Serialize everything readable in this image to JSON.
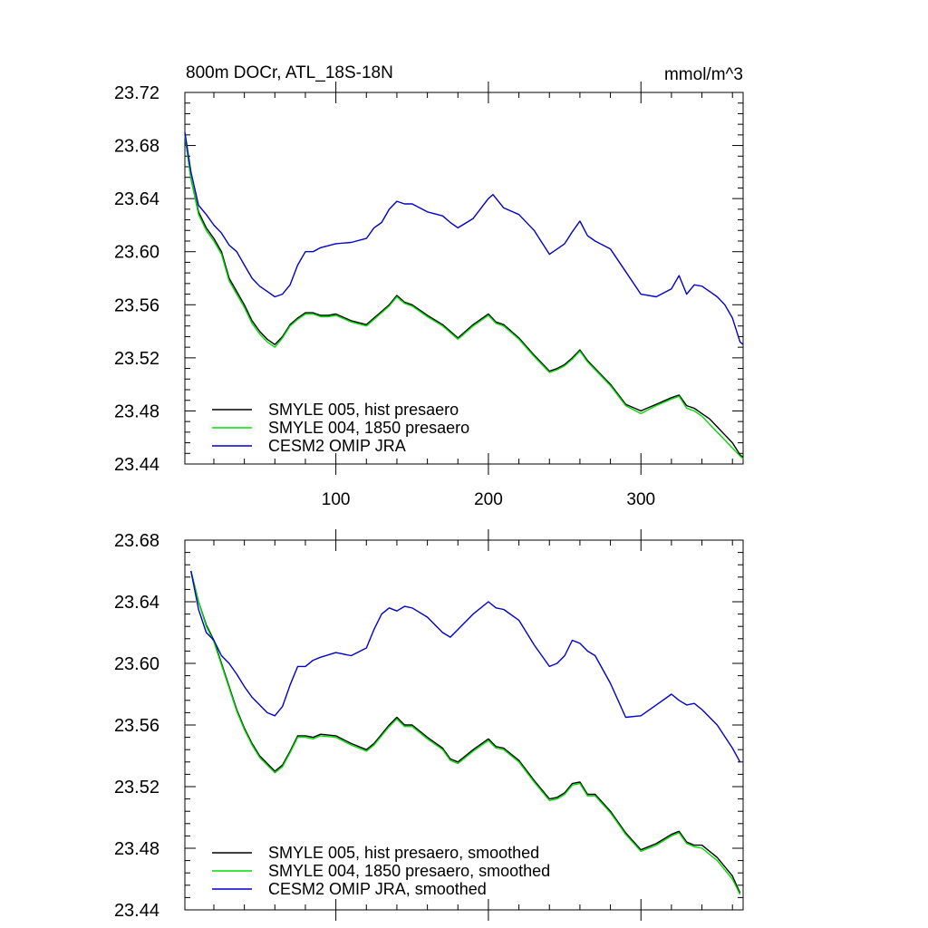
{
  "chart_data": [
    {
      "type": "line",
      "title": "800m DOCr, ATL_18S-18N",
      "units": "mmol/m^3",
      "xlim": [
        1,
        367
      ],
      "ylim": [
        23.44,
        23.72
      ],
      "yticks": [
        "23.44",
        "23.48",
        "23.52",
        "23.56",
        "23.60",
        "23.64",
        "23.68",
        "23.72"
      ],
      "xticks": [
        "100",
        "200",
        "300"
      ],
      "legend": [
        "SMYLE 005, hist presaero",
        "SMYLE 004, 1850 presaero",
        "CESM2 OMIP JRA"
      ],
      "series": [
        {
          "name": "SMYLE 005, hist presaero",
          "color": "#000000",
          "x": [
            1,
            5,
            10,
            15,
            20,
            25,
            30,
            35,
            40,
            45,
            50,
            55,
            60,
            65,
            70,
            75,
            80,
            85,
            90,
            95,
            100,
            110,
            120,
            125,
            130,
            135,
            140,
            145,
            150,
            160,
            170,
            180,
            190,
            200,
            205,
            210,
            220,
            230,
            240,
            245,
            250,
            255,
            260,
            265,
            270,
            280,
            290,
            300,
            310,
            320,
            325,
            330,
            335,
            340,
            345,
            350,
            355,
            360,
            365,
            367
          ],
          "y": [
            23.688,
            23.655,
            23.63,
            23.618,
            23.61,
            23.6,
            23.58,
            23.57,
            23.56,
            23.548,
            23.54,
            23.534,
            23.53,
            23.536,
            23.545,
            23.55,
            23.554,
            23.554,
            23.552,
            23.552,
            23.553,
            23.548,
            23.545,
            23.55,
            23.555,
            23.56,
            23.567,
            23.562,
            23.56,
            23.552,
            23.545,
            23.535,
            23.545,
            23.553,
            23.547,
            23.545,
            23.535,
            23.522,
            23.51,
            23.512,
            23.515,
            23.52,
            23.526,
            23.518,
            23.512,
            23.5,
            23.485,
            23.48,
            23.485,
            23.49,
            23.492,
            23.484,
            23.482,
            23.478,
            23.474,
            23.468,
            23.462,
            23.456,
            23.447,
            23.445
          ]
        },
        {
          "name": "SMYLE 004, 1850 presaero",
          "color": "#00dd00",
          "x": [
            1,
            5,
            10,
            15,
            20,
            25,
            30,
            35,
            40,
            45,
            50,
            55,
            60,
            65,
            70,
            75,
            80,
            85,
            90,
            95,
            100,
            110,
            120,
            125,
            130,
            135,
            140,
            145,
            150,
            160,
            170,
            180,
            190,
            200,
            205,
            210,
            220,
            230,
            240,
            245,
            250,
            255,
            260,
            265,
            270,
            280,
            290,
            300,
            310,
            320,
            325,
            330,
            335,
            340,
            345,
            350,
            355,
            360,
            365,
            367
          ],
          "y": [
            23.688,
            23.655,
            23.628,
            23.616,
            23.608,
            23.598,
            23.578,
            23.568,
            23.558,
            23.546,
            23.538,
            23.532,
            23.528,
            23.535,
            23.544,
            23.549,
            23.553,
            23.553,
            23.551,
            23.551,
            23.552,
            23.547,
            23.544,
            23.549,
            23.554,
            23.559,
            23.566,
            23.561,
            23.559,
            23.551,
            23.544,
            23.534,
            23.544,
            23.552,
            23.546,
            23.544,
            23.534,
            23.521,
            23.509,
            23.511,
            23.514,
            23.519,
            23.525,
            23.517,
            23.511,
            23.499,
            23.484,
            23.478,
            23.484,
            23.489,
            23.491,
            23.482,
            23.48,
            23.476,
            23.47,
            23.464,
            23.458,
            23.452,
            23.446,
            23.444
          ]
        },
        {
          "name": "CESM2 OMIP JRA",
          "color": "#0000cc",
          "x": [
            1,
            5,
            10,
            15,
            20,
            25,
            30,
            35,
            40,
            45,
            50,
            55,
            60,
            65,
            70,
            75,
            80,
            85,
            90,
            100,
            110,
            120,
            125,
            130,
            135,
            140,
            145,
            150,
            160,
            170,
            175,
            180,
            190,
            200,
            203,
            210,
            220,
            230,
            240,
            245,
            250,
            255,
            260,
            265,
            270,
            280,
            290,
            300,
            310,
            320,
            325,
            330,
            335,
            340,
            345,
            350,
            355,
            360,
            365,
            367
          ],
          "y": [
            23.69,
            23.66,
            23.635,
            23.628,
            23.62,
            23.614,
            23.605,
            23.6,
            23.59,
            23.58,
            23.574,
            23.57,
            23.566,
            23.568,
            23.575,
            23.59,
            23.6,
            23.6,
            23.603,
            23.606,
            23.607,
            23.61,
            23.618,
            23.622,
            23.632,
            23.638,
            23.636,
            23.636,
            23.63,
            23.627,
            23.622,
            23.618,
            23.625,
            23.64,
            23.643,
            23.633,
            23.628,
            23.616,
            23.598,
            23.602,
            23.606,
            23.615,
            23.623,
            23.612,
            23.608,
            23.602,
            23.585,
            23.568,
            23.566,
            23.572,
            23.582,
            23.568,
            23.575,
            23.574,
            23.57,
            23.566,
            23.56,
            23.55,
            23.532,
            23.53
          ]
        }
      ]
    },
    {
      "type": "line",
      "title": "",
      "xlim": [
        1,
        367
      ],
      "ylim": [
        23.44,
        23.68
      ],
      "yticks": [
        "23.44",
        "23.48",
        "23.52",
        "23.56",
        "23.60",
        "23.64",
        "23.68"
      ],
      "xticks": [],
      "legend": [
        "SMYLE 005, hist presaero, smoothed",
        "SMYLE 004, 1850 presaero, smoothed",
        "CESM2 OMIP JRA, smoothed"
      ],
      "series": [
        {
          "name": "SMYLE 005, hist presaero, smoothed",
          "color": "#000000",
          "x": [
            5,
            10,
            15,
            20,
            25,
            30,
            35,
            40,
            45,
            50,
            55,
            60,
            65,
            70,
            75,
            80,
            85,
            90,
            100,
            110,
            120,
            125,
            130,
            135,
            140,
            145,
            150,
            160,
            170,
            175,
            180,
            190,
            200,
            205,
            210,
            220,
            230,
            240,
            245,
            250,
            255,
            260,
            265,
            270,
            280,
            290,
            300,
            310,
            320,
            325,
            330,
            335,
            340,
            350,
            360,
            365
          ],
          "y": [
            23.66,
            23.64,
            23.625,
            23.615,
            23.6,
            23.585,
            23.57,
            23.558,
            23.548,
            23.54,
            23.535,
            23.53,
            23.534,
            23.543,
            23.553,
            23.553,
            23.552,
            23.554,
            23.553,
            23.548,
            23.544,
            23.548,
            23.554,
            23.56,
            23.565,
            23.56,
            23.56,
            23.552,
            23.545,
            23.538,
            23.536,
            23.544,
            23.551,
            23.546,
            23.545,
            23.537,
            23.524,
            23.512,
            23.513,
            23.516,
            23.522,
            23.523,
            23.515,
            23.515,
            23.504,
            23.49,
            23.479,
            23.483,
            23.489,
            23.491,
            23.484,
            23.482,
            23.482,
            23.474,
            23.462,
            23.451
          ]
        },
        {
          "name": "SMYLE 004, 1850 presaero, smoothed",
          "color": "#00dd00",
          "x": [
            5,
            10,
            15,
            20,
            25,
            30,
            35,
            40,
            45,
            50,
            55,
            60,
            65,
            70,
            75,
            80,
            85,
            90,
            100,
            110,
            120,
            125,
            130,
            135,
            140,
            145,
            150,
            160,
            170,
            175,
            180,
            190,
            200,
            205,
            210,
            220,
            230,
            240,
            245,
            250,
            255,
            260,
            265,
            270,
            280,
            290,
            300,
            310,
            320,
            325,
            330,
            335,
            340,
            350,
            360,
            365
          ],
          "y": [
            23.66,
            23.64,
            23.624,
            23.614,
            23.599,
            23.584,
            23.569,
            23.557,
            23.547,
            23.539,
            23.534,
            23.529,
            23.533,
            23.542,
            23.552,
            23.552,
            23.551,
            23.553,
            23.552,
            23.547,
            23.543,
            23.547,
            23.553,
            23.559,
            23.564,
            23.559,
            23.559,
            23.551,
            23.544,
            23.537,
            23.535,
            23.543,
            23.55,
            23.545,
            23.544,
            23.536,
            23.523,
            23.511,
            23.512,
            23.515,
            23.521,
            23.522,
            23.514,
            23.514,
            23.503,
            23.489,
            23.478,
            23.482,
            23.488,
            23.49,
            23.483,
            23.481,
            23.48,
            23.472,
            23.46,
            23.45
          ]
        },
        {
          "name": "CESM2 OMIP JRA, smoothed",
          "color": "#0000cc",
          "x": [
            5,
            10,
            15,
            20,
            25,
            30,
            35,
            40,
            45,
            50,
            55,
            60,
            65,
            70,
            75,
            80,
            85,
            90,
            100,
            110,
            120,
            125,
            130,
            135,
            140,
            145,
            150,
            160,
            170,
            175,
            180,
            190,
            200,
            205,
            210,
            220,
            230,
            240,
            245,
            250,
            255,
            260,
            265,
            270,
            280,
            290,
            300,
            310,
            320,
            325,
            330,
            335,
            340,
            350,
            360,
            365
          ],
          "y": [
            23.66,
            23.635,
            23.62,
            23.615,
            23.605,
            23.6,
            23.593,
            23.585,
            23.578,
            23.573,
            23.568,
            23.566,
            23.572,
            23.586,
            23.598,
            23.598,
            23.602,
            23.604,
            23.607,
            23.605,
            23.61,
            23.622,
            23.632,
            23.636,
            23.634,
            23.637,
            23.636,
            23.63,
            23.62,
            23.617,
            23.622,
            23.632,
            23.64,
            23.636,
            23.635,
            23.628,
            23.612,
            23.598,
            23.6,
            23.605,
            23.615,
            23.613,
            23.608,
            23.605,
            23.587,
            23.565,
            23.566,
            23.573,
            23.58,
            23.576,
            23.573,
            23.574,
            23.57,
            23.56,
            23.545,
            23.536
          ]
        }
      ]
    }
  ]
}
